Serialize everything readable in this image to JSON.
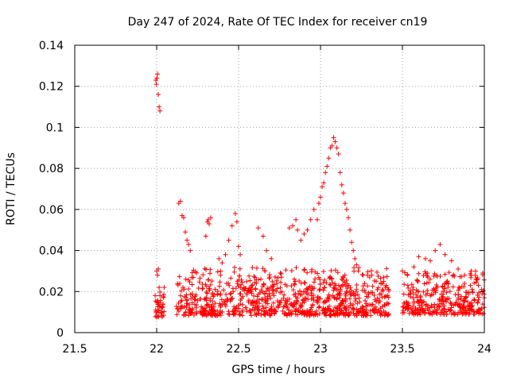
{
  "chart_data": {
    "type": "scatter",
    "title": "Day 247 of 2024, Rate Of TEC Index for receiver cn19",
    "xlabel": "GPS time / hours",
    "ylabel": "ROTI / TECUs",
    "xlim": [
      21.5,
      24
    ],
    "ylim": [
      0,
      0.14
    ],
    "xticks": [
      21.5,
      22,
      22.5,
      23,
      23.5,
      24
    ],
    "xtick_labels": [
      "21.5",
      "22",
      "22.5",
      "23",
      "23.5",
      "24"
    ],
    "yticks": [
      0,
      0.02,
      0.04,
      0.06,
      0.08,
      0.1,
      0.12,
      0.14
    ],
    "ytick_labels": [
      "0",
      "0.02",
      "0.04",
      "0.06",
      "0.08",
      "0.1",
      "0.12",
      "0.14"
    ],
    "grid": true,
    "marker": "+",
    "color": "#ff0000",
    "series": [
      {
        "name": "cn19 ROTI",
        "x": [
          21.995,
          21.998,
          22.002,
          22.005,
          22.01,
          22.015,
          22.02,
          22.0,
          22.005,
          22.01,
          22.015,
          22.02,
          22.135,
          22.145,
          22.155,
          22.165,
          22.175,
          22.185,
          22.195,
          22.205,
          22.3,
          22.31,
          22.315,
          22.32,
          22.33,
          22.38,
          22.4,
          22.42,
          22.44,
          22.46,
          22.48,
          22.49,
          22.5,
          22.51,
          22.62,
          22.65,
          22.67,
          22.7,
          22.81,
          22.83,
          22.85,
          22.86,
          22.88,
          22.9,
          22.92,
          22.94,
          22.96,
          22.98,
          22.99,
          23.0,
          23.01,
          23.02,
          23.03,
          23.04,
          23.05,
          23.06,
          23.07,
          23.08,
          23.09,
          23.1,
          23.11,
          23.12,
          23.13,
          23.14,
          23.15,
          23.16,
          23.17,
          23.18,
          23.19,
          23.2,
          23.21,
          23.22,
          23.23,
          23.26,
          23.3,
          23.34,
          23.38,
          23.4,
          23.5,
          23.53,
          23.57,
          23.6,
          23.64,
          23.67,
          23.7,
          23.73,
          23.76,
          23.8,
          23.84,
          23.88,
          23.92,
          23.96,
          23.99
        ],
        "y": [
          0.123,
          0.121,
          0.124,
          0.126,
          0.116,
          0.11,
          0.108,
          0.03,
          0.028,
          0.031,
          0.022,
          0.018,
          0.063,
          0.064,
          0.057,
          0.056,
          0.049,
          0.045,
          0.043,
          0.04,
          0.047,
          0.054,
          0.055,
          0.053,
          0.056,
          0.036,
          0.034,
          0.038,
          0.045,
          0.052,
          0.058,
          0.054,
          0.042,
          0.038,
          0.051,
          0.047,
          0.04,
          0.036,
          0.051,
          0.052,
          0.055,
          0.05,
          0.045,
          0.048,
          0.05,
          0.055,
          0.06,
          0.055,
          0.063,
          0.066,
          0.071,
          0.073,
          0.078,
          0.081,
          0.085,
          0.09,
          0.091,
          0.095,
          0.093,
          0.09,
          0.087,
          0.078,
          0.072,
          0.068,
          0.063,
          0.06,
          0.056,
          0.05,
          0.044,
          0.04,
          0.036,
          0.033,
          0.03,
          0.028,
          0.027,
          0.025,
          0.024,
          0.023,
          0.03,
          0.028,
          0.032,
          0.037,
          0.036,
          0.035,
          0.04,
          0.043,
          0.038,
          0.035,
          0.031,
          0.028,
          0.03,
          0.026,
          0.029
        ]
      }
    ],
    "band_segments": [
      {
        "x_start": 21.99,
        "x_end": 22.05,
        "y_min": 0.005,
        "y_max": 0.022
      },
      {
        "x_start": 22.12,
        "x_end": 23.42,
        "y_min": 0.004,
        "y_max": 0.032
      },
      {
        "x_start": 23.5,
        "x_end": 24.0,
        "y_min": 0.005,
        "y_max": 0.03
      }
    ]
  }
}
